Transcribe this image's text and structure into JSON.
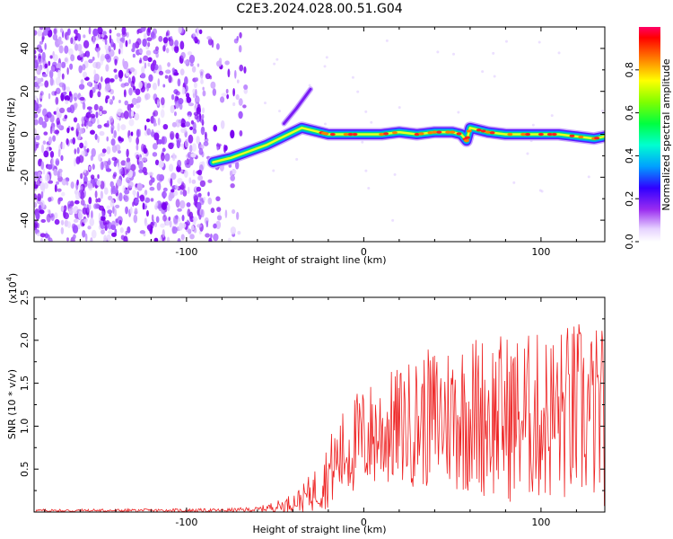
{
  "title": "C2E3.2024.028.00.51.G04",
  "chart_data": [
    {
      "type": "heatmap",
      "xlabel": "Height of straight line (km)",
      "ylabel": "Frequency (Hz)",
      "xlim": [
        -186,
        136
      ],
      "ylim": [
        -50,
        50
      ],
      "x_ticks": [
        -100,
        0,
        100
      ],
      "y_ticks": [
        -40,
        -20,
        0,
        20,
        40
      ],
      "colorbar": {
        "label": "Normalized spectral amplitude",
        "range": [
          0.0,
          1.0
        ],
        "ticks": [
          "0.0",
          "0.2",
          "0.4",
          "0.6",
          "0.8"
        ],
        "tick_values": [
          0.0,
          0.2,
          0.4,
          0.6,
          0.8
        ]
      },
      "noise_region_x": [
        -186,
        -66
      ],
      "signal_trace": {
        "x": [
          -85,
          -75,
          -65,
          -55,
          -45,
          -40,
          -35,
          -30,
          -25,
          -20,
          -10,
          0,
          10,
          20,
          30,
          40,
          50,
          55,
          58,
          60,
          70,
          80,
          90,
          100,
          110,
          120,
          130,
          136
        ],
        "y": [
          -13,
          -11,
          -8,
          -5,
          -1,
          1,
          3,
          2,
          1,
          0,
          0,
          0,
          0,
          1,
          0,
          1,
          1,
          0,
          -3,
          3,
          1,
          0,
          0,
          0,
          0,
          -1,
          -2,
          -1
        ]
      },
      "spike": {
        "x": [
          -45,
          -38,
          -30
        ],
        "y": [
          5,
          12,
          21
        ]
      }
    },
    {
      "type": "line",
      "xlabel": "Height of straight line (km)",
      "ylabel": "SNR (10 * v/v)",
      "scale_label": "(x10",
      "scale_exponent": "4",
      "xlim": [
        -186,
        136
      ],
      "ylim": [
        0,
        25000
      ],
      "x_ticks": [
        -100,
        0,
        100
      ],
      "y_ticks": [
        5000,
        10000,
        15000,
        20000,
        25000
      ],
      "y_tick_labels": [
        "0.5",
        "1.0",
        "1.5",
        "2.0",
        "2.5"
      ],
      "color": "#ee2222",
      "envelope": {
        "x": [
          -186,
          -80,
          -60,
          -45,
          -35,
          -25,
          -15,
          -5,
          5,
          20,
          40,
          60,
          80,
          100,
          120,
          136
        ],
        "base": [
          150,
          200,
          300,
          800,
          1500,
          3000,
          6000,
          8000,
          9000,
          10000,
          11000,
          11500,
          11000,
          11000,
          11500,
          11000
        ],
        "amp": [
          200,
          200,
          300,
          800,
          1500,
          3000,
          5000,
          6000,
          6500,
          7000,
          8500,
          9500,
          10000,
          10000,
          11000,
          10500
        ]
      }
    }
  ]
}
